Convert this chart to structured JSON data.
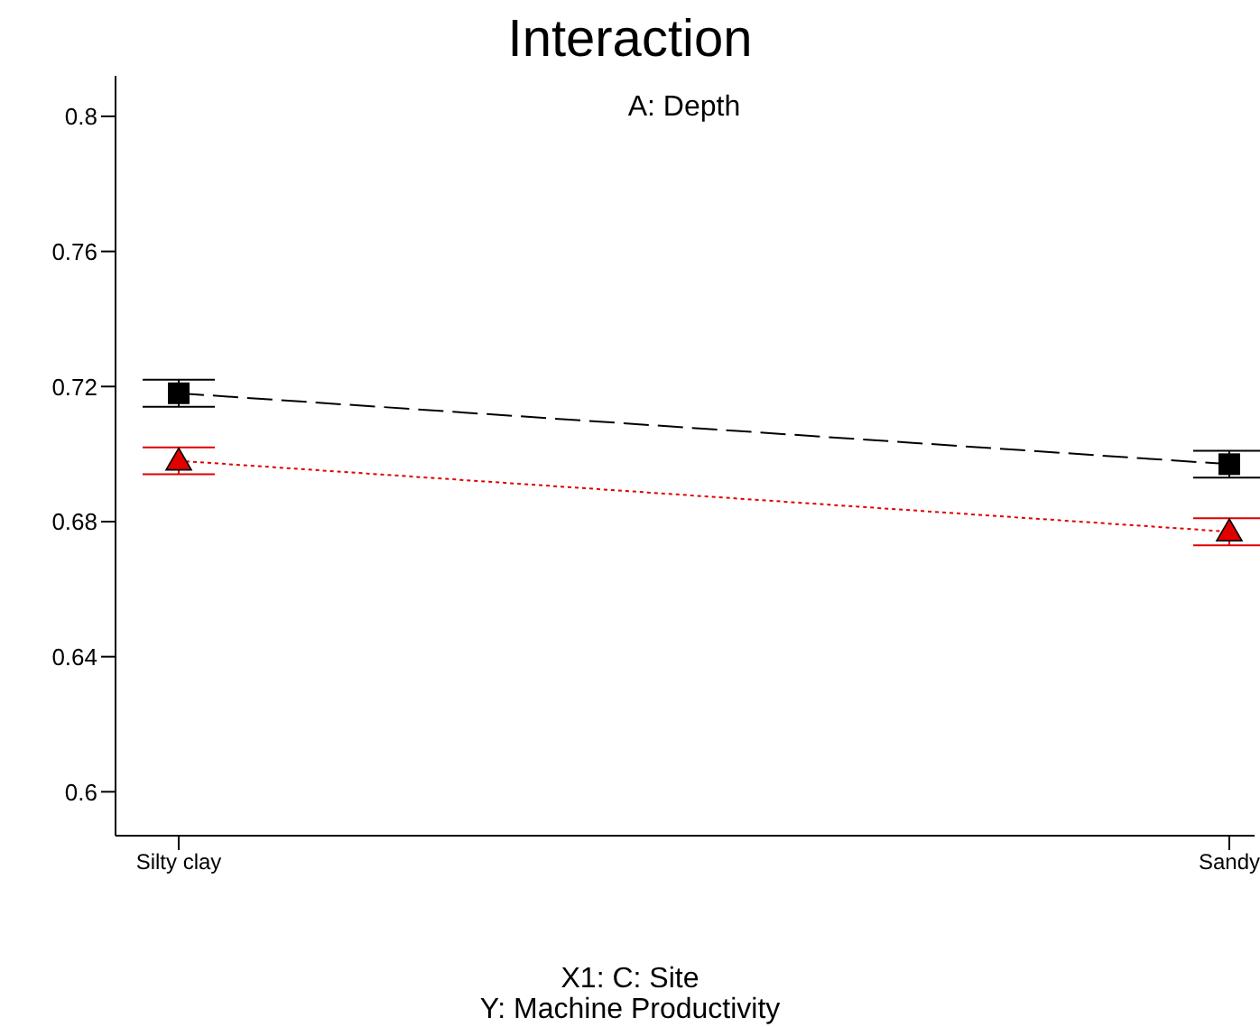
{
  "chart_data": {
    "type": "line",
    "title": "Interaction",
    "subtitle": "A: Depth",
    "xlabel": "X1: C: Site",
    "annotations": [
      "Y: Machine Productivity"
    ],
    "categories": [
      "Silty clay",
      "Sandy"
    ],
    "series": [
      {
        "color": "#000000",
        "values": [
          0.718,
          0.697
        ],
        "errors": [
          0.004,
          0.004
        ],
        "marker": "square",
        "line_style": "dashed"
      },
      {
        "color": "#e00000",
        "values": [
          0.698,
          0.677
        ],
        "errors": [
          0.004,
          0.004
        ],
        "marker": "triangle",
        "line_style": "dotted"
      }
    ],
    "ylim": [
      0.587,
      0.812
    ],
    "yticks": [
      0.6,
      0.64,
      0.68,
      0.72,
      0.76,
      0.8
    ],
    "grid": false,
    "legend": false
  }
}
